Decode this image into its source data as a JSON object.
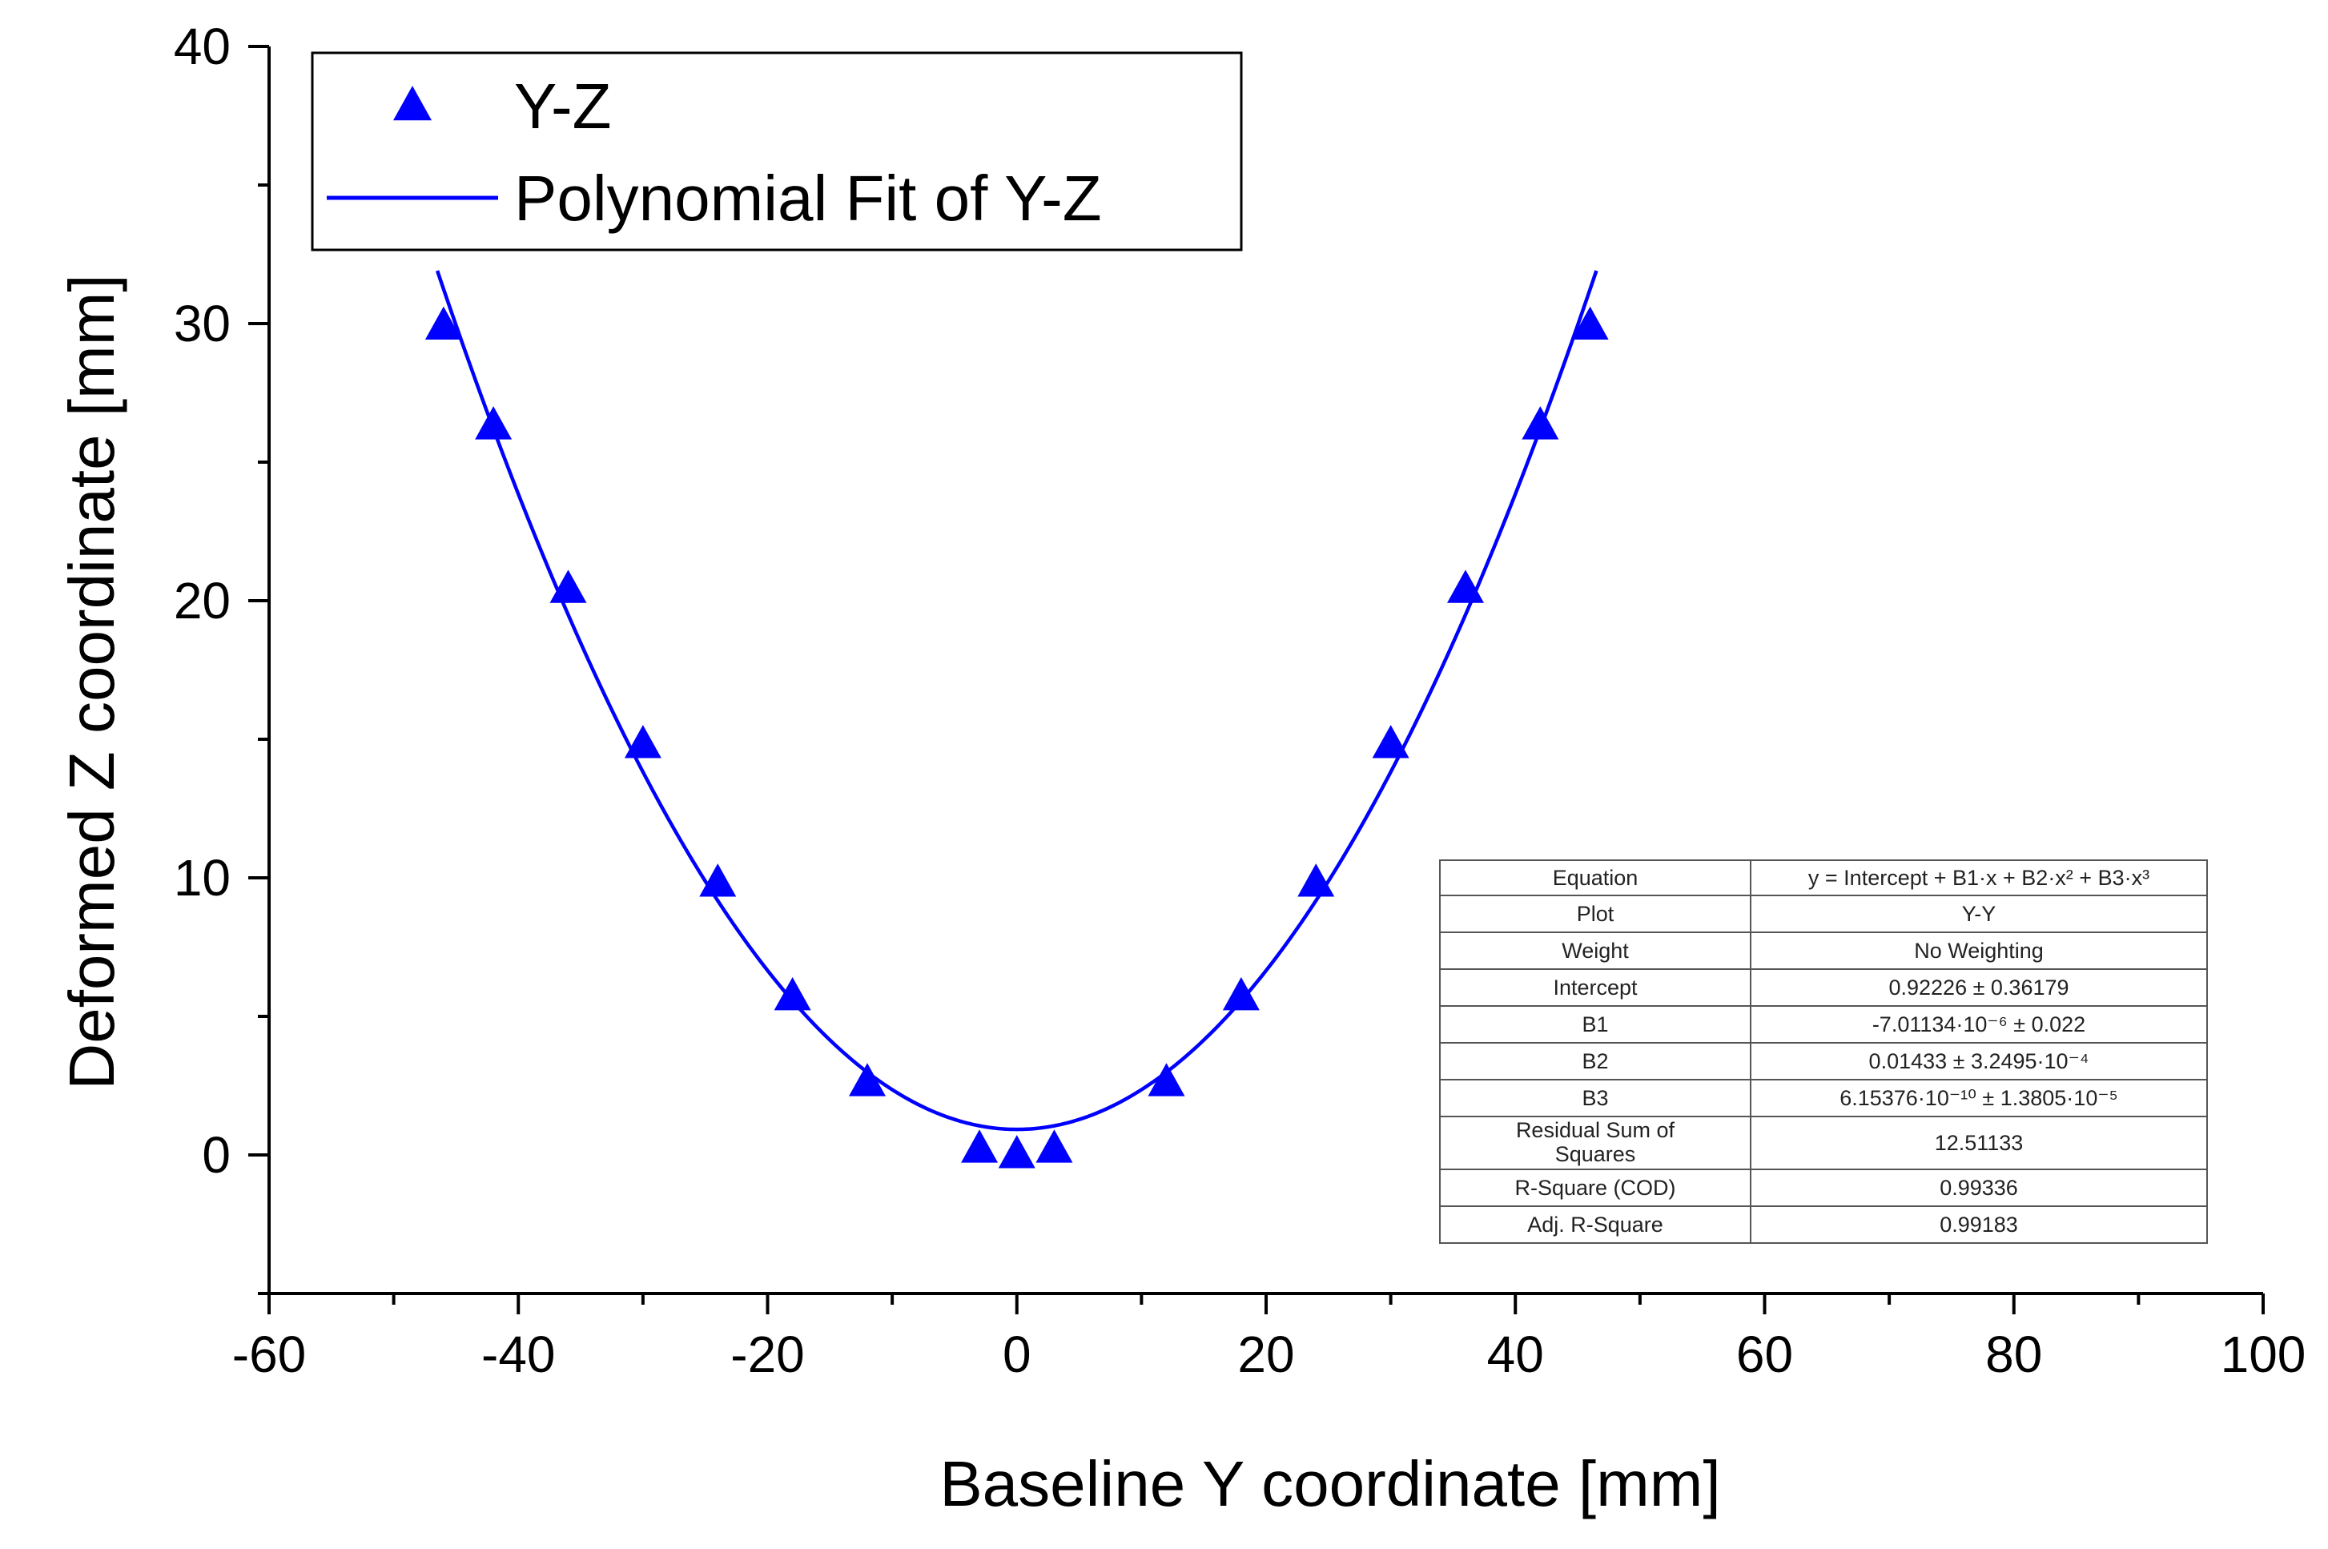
{
  "chart_data": {
    "type": "scatter",
    "title": "",
    "xlabel": "Baseline Y coordinate [mm]",
    "ylabel": "Deformed Z coordinate [mm]",
    "xlim": [
      -60,
      100
    ],
    "ylim": [
      -5,
      40
    ],
    "x_ticks": [
      "-60",
      "-40",
      "-20",
      "0",
      "20",
      "40",
      "60",
      "80",
      "100"
    ],
    "y_ticks": [
      "0",
      "10",
      "20",
      "30",
      "40"
    ],
    "colors": {
      "series": "#0000ff",
      "axis": "#000000"
    },
    "legend": {
      "placement": "top-left",
      "entries": [
        {
          "label": "Y-Z",
          "marker": "triangle-up"
        },
        {
          "label": "Polynomial Fit of Y-Z",
          "marker": "line"
        }
      ]
    },
    "series": [
      {
        "name": "Y-Z",
        "type": "scatter",
        "x": [
          -46,
          -42,
          -36,
          -30,
          -24,
          -18,
          -12,
          -3,
          0,
          3,
          12,
          18,
          24,
          30,
          36,
          42,
          46
        ],
        "y": [
          29.9,
          26.3,
          20.4,
          14.8,
          9.8,
          5.7,
          2.6,
          0.2,
          0.0,
          0.2,
          2.6,
          5.7,
          9.8,
          14.8,
          20.4,
          26.3,
          29.9
        ]
      },
      {
        "name": "Polynomial Fit of Y-Z",
        "type": "line",
        "x_range": [
          -46.5,
          46.5
        ],
        "coefficients": {
          "intercept": 0.92226,
          "b1": -7.01134e-06,
          "b2": 0.01433,
          "b3": 6.15376e-10
        }
      }
    ],
    "fit_table": {
      "rows": [
        {
          "label": "Equation",
          "value": "y = Intercept + B1·x + B2·x² + B3·x³"
        },
        {
          "label": "Plot",
          "value": "Y-Y"
        },
        {
          "label": "Weight",
          "value": "No Weighting"
        },
        {
          "label": "Intercept",
          "value": "0.92226 ± 0.36179"
        },
        {
          "label": "B1",
          "value": "-7.01134·10⁻⁶ ± 0.022"
        },
        {
          "label": "B2",
          "value": "0.01433 ± 3.2495·10⁻⁴"
        },
        {
          "label": "B3",
          "value": "6.15376·10⁻¹⁰ ± 1.3805·10⁻⁵"
        },
        {
          "label": "Residual Sum of Squares",
          "value": "12.51133"
        },
        {
          "label": "R-Square (COD)",
          "value": "0.99336"
        },
        {
          "label": "Adj. R-Square",
          "value": "0.99183"
        }
      ]
    }
  }
}
